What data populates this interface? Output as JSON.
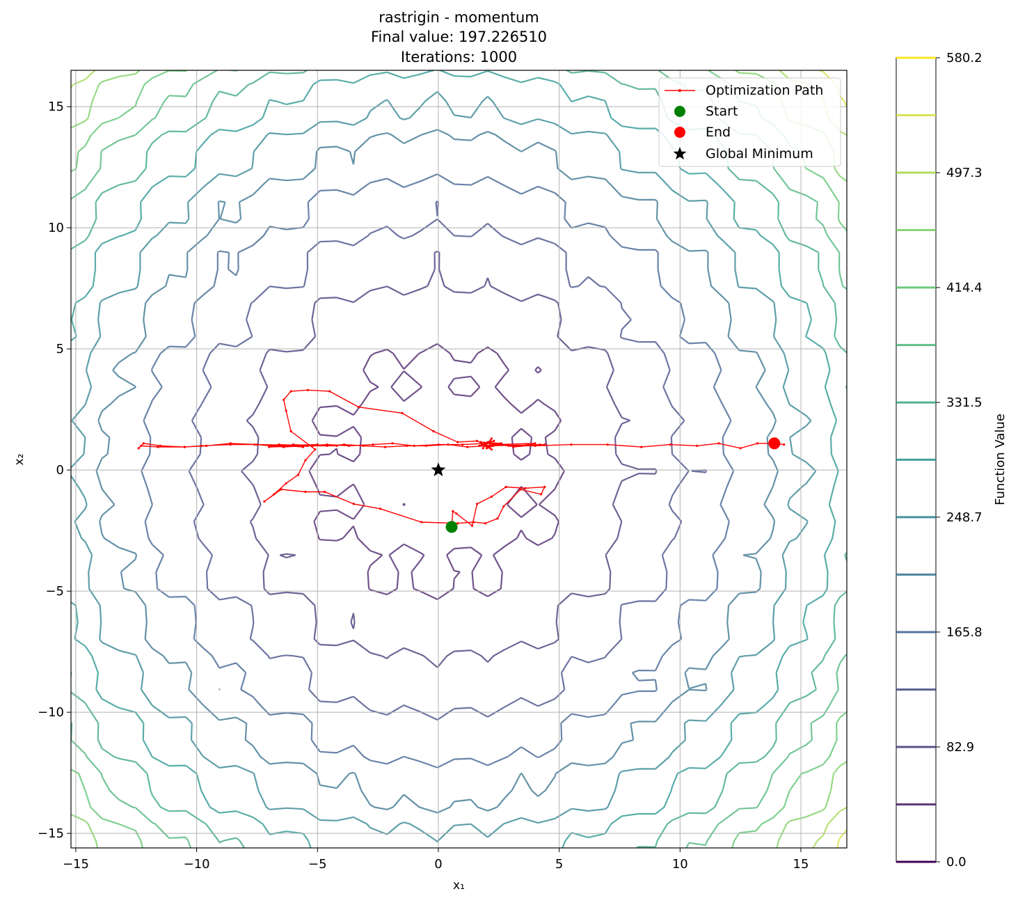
{
  "chart_data": {
    "type": "contour",
    "title_lines": [
      "rastrigin - momentum",
      "Final value: 197.226510",
      "Iterations: 1000"
    ],
    "xlabel": "x₁",
    "ylabel": "x₂",
    "xlim": [
      -15.2,
      16.9
    ],
    "ylim": [
      -15.6,
      16.5
    ],
    "xticks": [
      -15,
      -10,
      -5,
      0,
      5,
      10,
      15
    ],
    "yticks": [
      -15,
      -10,
      -5,
      0,
      5,
      10,
      15
    ],
    "xtick_labels": [
      "−15",
      "−10",
      "−5",
      "0",
      "5",
      "10",
      "15"
    ],
    "ytick_labels": [
      "−15",
      "−10",
      "−5",
      "0",
      "5",
      "10",
      "15"
    ],
    "grid": true,
    "function": "rastrigin",
    "contour_levels": [
      41.45,
      82.9,
      124.35,
      165.8,
      207.25,
      248.7,
      290.15,
      331.5,
      372.95,
      414.4,
      455.85,
      497.3,
      538.75
    ],
    "colorbar": {
      "label": "Function Value",
      "range": [
        0.0,
        580.2
      ],
      "tick_values": [
        0.0,
        82.9,
        165.8,
        248.7,
        331.5,
        414.4,
        497.3,
        580.2
      ],
      "tick_labels": [
        "0.0",
        "82.9",
        "165.8",
        "248.7",
        "331.5",
        "414.4",
        "497.3",
        "580.2"
      ]
    },
    "legend": {
      "placement": "top-right",
      "entries": [
        "Optimization Path",
        "Start",
        "End",
        "Global Minimum"
      ]
    },
    "series": [
      {
        "name": "Optimization Path",
        "color": "#ff0000",
        "x": [
          0.55,
          0.6,
          0.75,
          1.4,
          1.6,
          2.2,
          2.8,
          3.6,
          4.4,
          4.25,
          3.4,
          2.7,
          2.45,
          1.95,
          1.45,
          0.8,
          -0.7,
          -2.4,
          -3.5,
          -4.7,
          -5.5,
          -6.5,
          -7.2,
          -6.8,
          -6.3,
          -5.8,
          -5.5,
          -5.1,
          -6.1,
          -6.3,
          -6.4,
          -6.1,
          -5.4,
          -4.5,
          -3.3,
          -1.5,
          -0.2,
          0.8,
          1.6,
          2.1,
          2.2,
          1.85,
          2.05,
          1.8,
          2.2,
          1.9,
          2.3,
          1.7,
          2.5,
          2.0,
          2.6,
          1.75,
          3.2,
          2.4,
          4.0,
          3.1,
          4.2,
          2.9,
          4.4,
          2.0,
          1.2,
          0.4,
          -0.5,
          -1.3,
          -2.2,
          -3.1,
          -3.9,
          -4.6,
          -5.2,
          -6.0,
          -6.3,
          -5.6,
          -6.6,
          -5.4,
          -7.0,
          -5.0,
          -6.9,
          -4.2,
          -7.6,
          -8.6,
          -9.8,
          -10.5,
          -11.6,
          -12.3,
          -12.4,
          -12.2,
          -11.5,
          -10.5,
          -9.6,
          -8.6,
          -7.5,
          -6.4,
          -5.5,
          -4.6,
          -3.7,
          -2.7,
          -1.9,
          -1.0,
          0.0,
          1.0,
          2.0,
          3.0,
          4.0,
          5.5,
          7.0,
          8.4,
          9.6,
          10.7,
          11.6,
          12.5,
          13.2,
          13.8,
          14.3,
          13.9
        ],
        "y": [
          -2.4,
          -1.7,
          -1.8,
          -2.3,
          -1.4,
          -1.1,
          -0.7,
          -0.75,
          -0.7,
          -1.0,
          -0.8,
          -1.5,
          -2.0,
          -2.2,
          -2.15,
          -2.2,
          -2.15,
          -1.6,
          -1.4,
          -0.9,
          -0.9,
          -0.8,
          -1.3,
          -1.0,
          -0.55,
          -0.2,
          0.4,
          0.85,
          1.6,
          2.45,
          2.9,
          3.25,
          3.3,
          3.25,
          2.6,
          2.35,
          1.6,
          1.15,
          1.2,
          0.95,
          1.3,
          0.9,
          1.15,
          1.05,
          0.85,
          1.1,
          1.2,
          1.0,
          1.05,
          0.9,
          1.1,
          1.15,
          1.0,
          1.05,
          1.1,
          0.95,
          1.05,
          1.0,
          1.05,
          1.0,
          0.95,
          1.05,
          1.0,
          1.0,
          0.95,
          1.0,
          1.05,
          1.0,
          1.0,
          1.05,
          1.0,
          0.95,
          1.05,
          1.0,
          0.95,
          1.05,
          1.0,
          1.0,
          1.05,
          1.05,
          1.0,
          0.95,
          0.95,
          1.0,
          0.9,
          1.1,
          1.0,
          0.95,
          1.0,
          1.1,
          1.05,
          0.95,
          1.0,
          1.05,
          1.0,
          1.05,
          1.1,
          1.0,
          1.05,
          1.05,
          1.1,
          1.0,
          1.0,
          1.05,
          1.05,
          0.95,
          1.05,
          1.0,
          1.1,
          0.9,
          1.1,
          1.1,
          1.05,
          1.1
        ]
      },
      {
        "name": "Start",
        "color": "#008000",
        "x": [
          0.55
        ],
        "y": [
          -2.35
        ]
      },
      {
        "name": "End",
        "color": "#ff0000",
        "x": [
          13.9
        ],
        "y": [
          1.1
        ]
      },
      {
        "name": "Global Minimum",
        "color": "#000000",
        "x": [
          0.0
        ],
        "y": [
          0.0
        ]
      }
    ]
  }
}
